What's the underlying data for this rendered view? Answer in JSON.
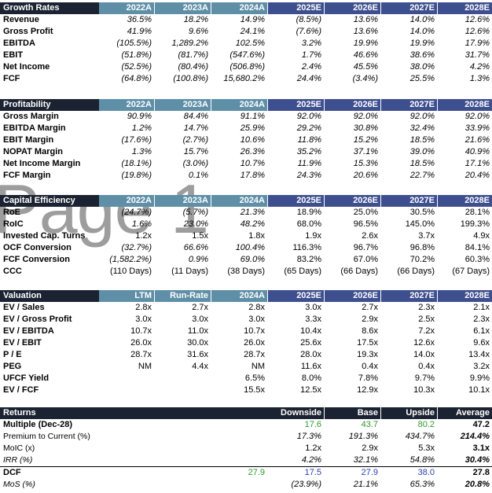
{
  "colors": {
    "dark_header": "#1b2231",
    "actual_header": "#5e8fa7",
    "estimate_header": "#3e4f8f",
    "green": "#2e9a2e",
    "blue": "#2a3fb0"
  },
  "growth": {
    "title": "Growth Rates",
    "cols": [
      "2022A",
      "2023A",
      "2024A",
      "2025E",
      "2026E",
      "2027E",
      "2028E"
    ],
    "rows": [
      {
        "label": "Revenue",
        "vals": [
          "36.5%",
          "18.2%",
          "14.9%",
          "(8.5%)",
          "13.6%",
          "14.0%",
          "12.6%"
        ]
      },
      {
        "label": "Gross Profit",
        "vals": [
          "41.9%",
          "9.6%",
          "24.1%",
          "(7.6%)",
          "13.6%",
          "14.0%",
          "12.6%"
        ]
      },
      {
        "label": "EBITDA",
        "vals": [
          "(105.5%)",
          "1,289.2%",
          "102.5%",
          "3.2%",
          "19.9%",
          "19.9%",
          "17.9%"
        ]
      },
      {
        "label": "EBIT",
        "vals": [
          "(51.8%)",
          "(81.7%)",
          "(547.6%)",
          "1.7%",
          "46.6%",
          "38.6%",
          "31.7%"
        ]
      },
      {
        "label": "Net Income",
        "vals": [
          "(52.5%)",
          "(80.4%)",
          "(506.8%)",
          "2.4%",
          "45.5%",
          "38.0%",
          "4.2%"
        ]
      },
      {
        "label": "FCF",
        "vals": [
          "(64.8%)",
          "(100.8%)",
          "15,680.2%",
          "24.4%",
          "(3.4%)",
          "25.5%",
          "1.3%"
        ]
      }
    ]
  },
  "profitability": {
    "title": "Profitability",
    "cols": [
      "2022A",
      "2023A",
      "2024A",
      "2025E",
      "2026E",
      "2027E",
      "2028E"
    ],
    "rows": [
      {
        "label": "Gross Margin",
        "vals": [
          "90.9%",
          "84.4%",
          "91.1%",
          "92.0%",
          "92.0%",
          "92.0%",
          "92.0%"
        ]
      },
      {
        "label": "EBITDA Margin",
        "vals": [
          "1.2%",
          "14.7%",
          "25.9%",
          "29.2%",
          "30.8%",
          "32.4%",
          "33.9%"
        ]
      },
      {
        "label": "EBIT Margin",
        "vals": [
          "(17.6%)",
          "(2.7%)",
          "10.6%",
          "11.8%",
          "15.2%",
          "18.5%",
          "21.6%"
        ]
      },
      {
        "label": "NOPAT Margin",
        "vals": [
          "1.3%",
          "15.7%",
          "26.3%",
          "35.2%",
          "37.1%",
          "39.0%",
          "40.9%"
        ]
      },
      {
        "label": "Net Income Margin",
        "vals": [
          "(18.1%)",
          "(3.0%)",
          "10.7%",
          "11.9%",
          "15.3%",
          "18.5%",
          "17.1%"
        ]
      },
      {
        "label": "FCF Margin",
        "vals": [
          "(19.8%)",
          "0.1%",
          "17.8%",
          "24.3%",
          "20.6%",
          "22.7%",
          "20.4%"
        ]
      }
    ]
  },
  "capital": {
    "title": "Capital Efficiency",
    "cols": [
      "2022A",
      "2023A",
      "2024A",
      "2025E",
      "2026E",
      "2027E",
      "2028E"
    ],
    "rows": [
      {
        "label": "RoE",
        "vals": [
          "(24.7%)",
          "(5.7%)",
          "21.3%",
          "18.9%",
          "25.0%",
          "30.5%",
          "28.1%"
        ]
      },
      {
        "label": "RoIC",
        "vals": [
          "1.6%",
          "23.0%",
          "48.2%",
          "68.0%",
          "96.5%",
          "145.0%",
          "199.3%"
        ]
      },
      {
        "label": "Invested Cap. Turns",
        "vals": [
          "1.2x",
          "1.5x",
          "1.8x",
          "1.9x",
          "2.6x",
          "3.7x",
          "4.9x"
        ]
      },
      {
        "label": "OCF Conversion",
        "vals": [
          "(32.7%)",
          "66.6%",
          "100.4%",
          "116.3%",
          "96.7%",
          "96.8%",
          "84.1%"
        ]
      },
      {
        "label": "FCF Conversion",
        "vals": [
          "(1,582.2%)",
          "0.9%",
          "69.0%",
          "83.2%",
          "67.0%",
          "70.2%",
          "60.3%"
        ]
      },
      {
        "label": "CCC",
        "vals": [
          "(110 Days)",
          "(11 Days)",
          "(38 Days)",
          "(65 Days)",
          "(66 Days)",
          "(66 Days)",
          "(67 Days)"
        ]
      }
    ]
  },
  "valuation": {
    "title": "Valuation",
    "cols": [
      "LTM",
      "Run-Rate",
      "2024A",
      "2025E",
      "2026E",
      "2027E",
      "2028E"
    ],
    "rows": [
      {
        "label": "EV / Sales",
        "vals": [
          "2.8x",
          "2.7x",
          "2.8x",
          "3.0x",
          "2.7x",
          "2.3x",
          "2.1x"
        ]
      },
      {
        "label": "EV / Gross Profit",
        "vals": [
          "3.0x",
          "3.0x",
          "3.0x",
          "3.3x",
          "2.9x",
          "2.5x",
          "2.3x"
        ]
      },
      {
        "label": "EV / EBITDA",
        "vals": [
          "10.7x",
          "11.0x",
          "10.7x",
          "10.4x",
          "8.6x",
          "7.2x",
          "6.1x"
        ]
      },
      {
        "label": "EV / EBIT",
        "vals": [
          "26.0x",
          "30.0x",
          "26.0x",
          "25.6x",
          "17.5x",
          "12.6x",
          "9.6x"
        ]
      },
      {
        "label": "P / E",
        "vals": [
          "28.7x",
          "31.6x",
          "28.7x",
          "28.0x",
          "19.3x",
          "14.0x",
          "13.4x"
        ]
      },
      {
        "label": "PEG",
        "vals": [
          "NM",
          "4.4x",
          "NM",
          "11.6x",
          "0.4x",
          "0.4x",
          "3.2x"
        ]
      },
      {
        "label": "UFCF Yield",
        "vals": [
          "",
          "",
          "6.5%",
          "8.0%",
          "7.8%",
          "9.7%",
          "9.9%"
        ]
      },
      {
        "label": "EV / FCF",
        "vals": [
          "",
          "",
          "15.5x",
          "12.5x",
          "12.9x",
          "10.3x",
          "10.1x"
        ]
      }
    ]
  },
  "returns": {
    "title": "Returns",
    "cols": [
      "Downside",
      "Base",
      "Upside",
      "Average"
    ],
    "multiple_label": "Multiple (Dec-28)",
    "multiple_vals": [
      "17.6",
      "43.7",
      "80.2",
      "47.2"
    ],
    "premium_label": "Premium to Current (%)",
    "premium_vals": [
      "17.3%",
      "191.3%",
      "434.7%",
      "214.4%"
    ],
    "moic_label": "MoIC (x)",
    "moic_vals": [
      "1.2x",
      "2.9x",
      "5.3x",
      "3.1x"
    ],
    "irr_label": "IRR (%)",
    "irr_vals": [
      "4.2%",
      "32.1%",
      "54.8%",
      "30.4%"
    ],
    "dcf_label": "DCF",
    "dcf_current": "27.9",
    "dcf_vals": [
      "17.5",
      "27.9",
      "38.0",
      "27.8"
    ],
    "mos_label": "MoS (%)",
    "mos_vals": [
      "(23.9%)",
      "21.1%",
      "65.3%",
      "20.8%"
    ]
  },
  "watermark": "Page 1"
}
